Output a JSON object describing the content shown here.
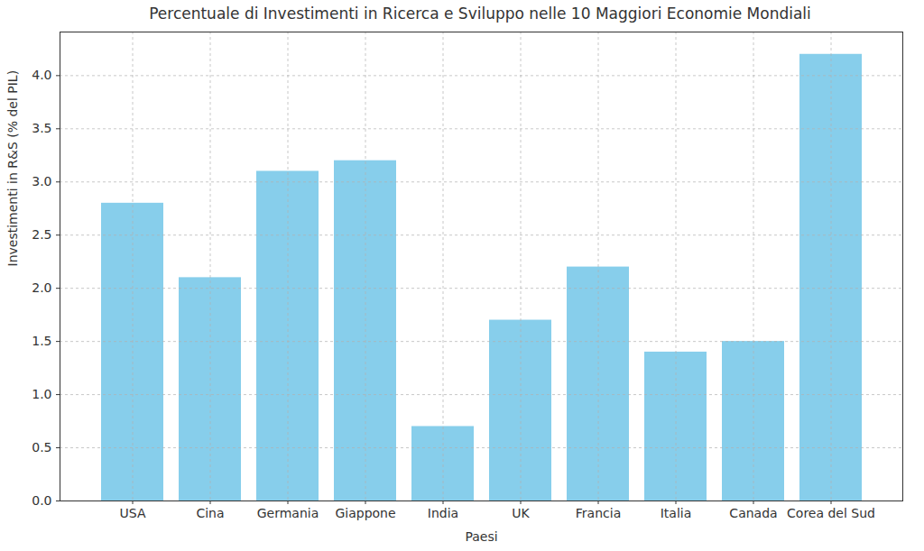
{
  "chart_data": {
    "type": "bar",
    "title": "Percentuale di Investimenti in Ricerca e Sviluppo nelle 10 Maggiori Economie Mondiali",
    "x_label": "Paesi",
    "y_label": "Investimenti in R&S (% del PIL)",
    "categories": [
      "USA",
      "Cina",
      "Germania",
      "Giappone",
      "India",
      "UK",
      "Francia",
      "Italia",
      "Canada",
      "Corea del Sud"
    ],
    "values": [
      2.8,
      2.1,
      3.1,
      3.2,
      0.7,
      1.7,
      2.2,
      1.4,
      1.5,
      4.2
    ],
    "color": "#87ceeb",
    "ylim": [
      0,
      4.41
    ],
    "yticks": [
      {
        "value": 0,
        "label": "0.0"
      },
      0.5,
      {
        "value": 1,
        "label": "1.0"
      },
      1.5,
      {
        "value": 2,
        "label": "2.0"
      },
      2.5,
      {
        "value": 3,
        "label": "3.0"
      },
      3.5,
      {
        "value": 4,
        "label": "4.0"
      }
    ],
    "grid": true
  }
}
